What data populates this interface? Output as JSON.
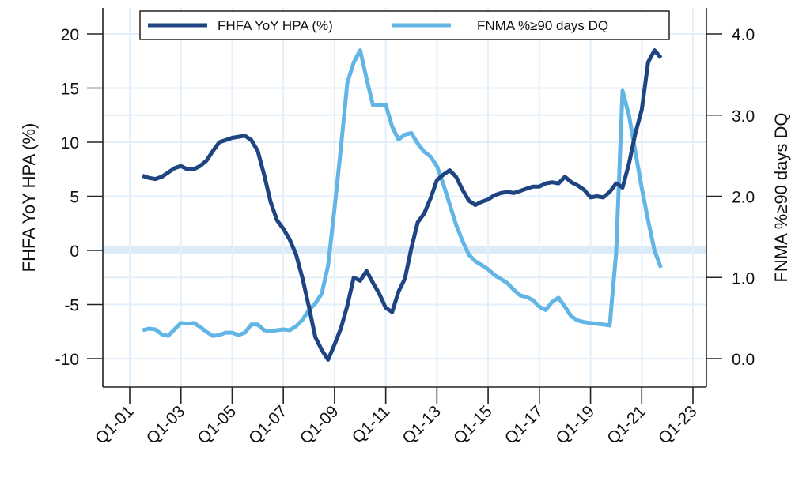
{
  "chart_data": {
    "type": "line",
    "title": "",
    "xlabel": "",
    "ylabel_left": "FHFA YoY HPA (%)",
    "ylabel_right": "FNMA %≥90 days DQ",
    "x_start": 2001.5,
    "x_step": 0.25,
    "xlim": [
      1999.5,
      2023.5
    ],
    "x_ticks": [
      {
        "t": 2001,
        "label": "Q1-01"
      },
      {
        "t": 2003,
        "label": "Q1-03"
      },
      {
        "t": 2005,
        "label": "Q1-05"
      },
      {
        "t": 2007,
        "label": "Q1-07"
      },
      {
        "t": 2009,
        "label": "Q1-09"
      },
      {
        "t": 2011,
        "label": "Q1-11"
      },
      {
        "t": 2013,
        "label": "Q1-13"
      },
      {
        "t": 2015,
        "label": "Q1-15"
      },
      {
        "t": 2017,
        "label": "Q1-17"
      },
      {
        "t": 2019,
        "label": "Q1-19"
      },
      {
        "t": 2021,
        "label": "Q1-21"
      },
      {
        "t": 2023,
        "label": "Q1-23"
      }
    ],
    "ylim_left": [
      -12.5,
      22
    ],
    "y_ticks_left": [
      {
        "v": 20,
        "label": "20"
      },
      {
        "v": 15,
        "label": "15"
      },
      {
        "v": 10,
        "label": "10"
      },
      {
        "v": 5,
        "label": "5"
      },
      {
        "v": 0,
        "label": "0"
      },
      {
        "v": -5,
        "label": "-5"
      },
      {
        "v": -10,
        "label": "-10"
      }
    ],
    "ylim_right": [
      -0.35,
      4.3
    ],
    "y_ticks_right": [
      {
        "v": 4.0,
        "label": "4.0"
      },
      {
        "v": 3.0,
        "label": "3.0"
      },
      {
        "v": 2.0,
        "label": "2.0"
      },
      {
        "v": 1.0,
        "label": "1.0"
      },
      {
        "v": 0.0,
        "label": "0.0"
      }
    ],
    "grid": true,
    "zero_band": 0,
    "legend_position": "top",
    "series": [
      {
        "name": "FHFA YoY HPA (%)",
        "axis": "left",
        "color": "#1f4482",
        "values": [
          6.9,
          6.7,
          6.6,
          6.8,
          7.2,
          7.6,
          7.8,
          7.5,
          7.5,
          7.8,
          8.3,
          9.2,
          10.0,
          10.2,
          10.4,
          10.5,
          10.6,
          10.2,
          9.2,
          7.0,
          4.5,
          2.8,
          2.0,
          1.0,
          -0.4,
          -2.6,
          -5.2,
          -8.0,
          -9.2,
          -10.1,
          -8.7,
          -7.2,
          -5.1,
          -2.5,
          -2.8,
          -1.9,
          -3.0,
          -4.0,
          -5.3,
          -5.7,
          -3.8,
          -2.6,
          0.2,
          2.6,
          3.4,
          4.8,
          6.5,
          7.0,
          7.4,
          6.8,
          5.6,
          4.6,
          4.2,
          4.5,
          4.7,
          5.1,
          5.3,
          5.4,
          5.3,
          5.5,
          5.7,
          5.9,
          5.9,
          6.2,
          6.3,
          6.2,
          6.8,
          6.3,
          6.0,
          5.6,
          4.9,
          5.0,
          4.9,
          5.4,
          6.2,
          5.8,
          8.0,
          10.8,
          13.0,
          17.4,
          18.5,
          17.8
        ]
      },
      {
        "name": "FNMA %≥90 days DQ",
        "axis": "right",
        "color": "#62b5e5",
        "values": [
          0.35,
          0.37,
          0.36,
          0.3,
          0.28,
          0.36,
          0.44,
          0.43,
          0.44,
          0.39,
          0.33,
          0.28,
          0.29,
          0.32,
          0.32,
          0.29,
          0.32,
          0.42,
          0.42,
          0.35,
          0.34,
          0.35,
          0.36,
          0.35,
          0.4,
          0.48,
          0.6,
          0.68,
          0.8,
          1.15,
          1.85,
          2.6,
          3.4,
          3.65,
          3.8,
          3.45,
          3.12,
          3.12,
          3.13,
          2.86,
          2.7,
          2.76,
          2.78,
          2.65,
          2.55,
          2.49,
          2.37,
          2.15,
          1.9,
          1.65,
          1.45,
          1.28,
          1.2,
          1.15,
          1.1,
          1.03,
          0.98,
          0.93,
          0.85,
          0.78,
          0.76,
          0.72,
          0.64,
          0.6,
          0.7,
          0.75,
          0.64,
          0.52,
          0.47,
          0.45,
          0.44,
          0.43,
          0.42,
          0.41,
          1.3,
          3.3,
          3.0,
          2.55,
          2.1,
          1.7,
          1.33,
          1.12
        ]
      }
    ],
    "colors": {
      "grid": "#e3effa",
      "zero_band": "#dcebf8",
      "axis": "#222222"
    }
  }
}
